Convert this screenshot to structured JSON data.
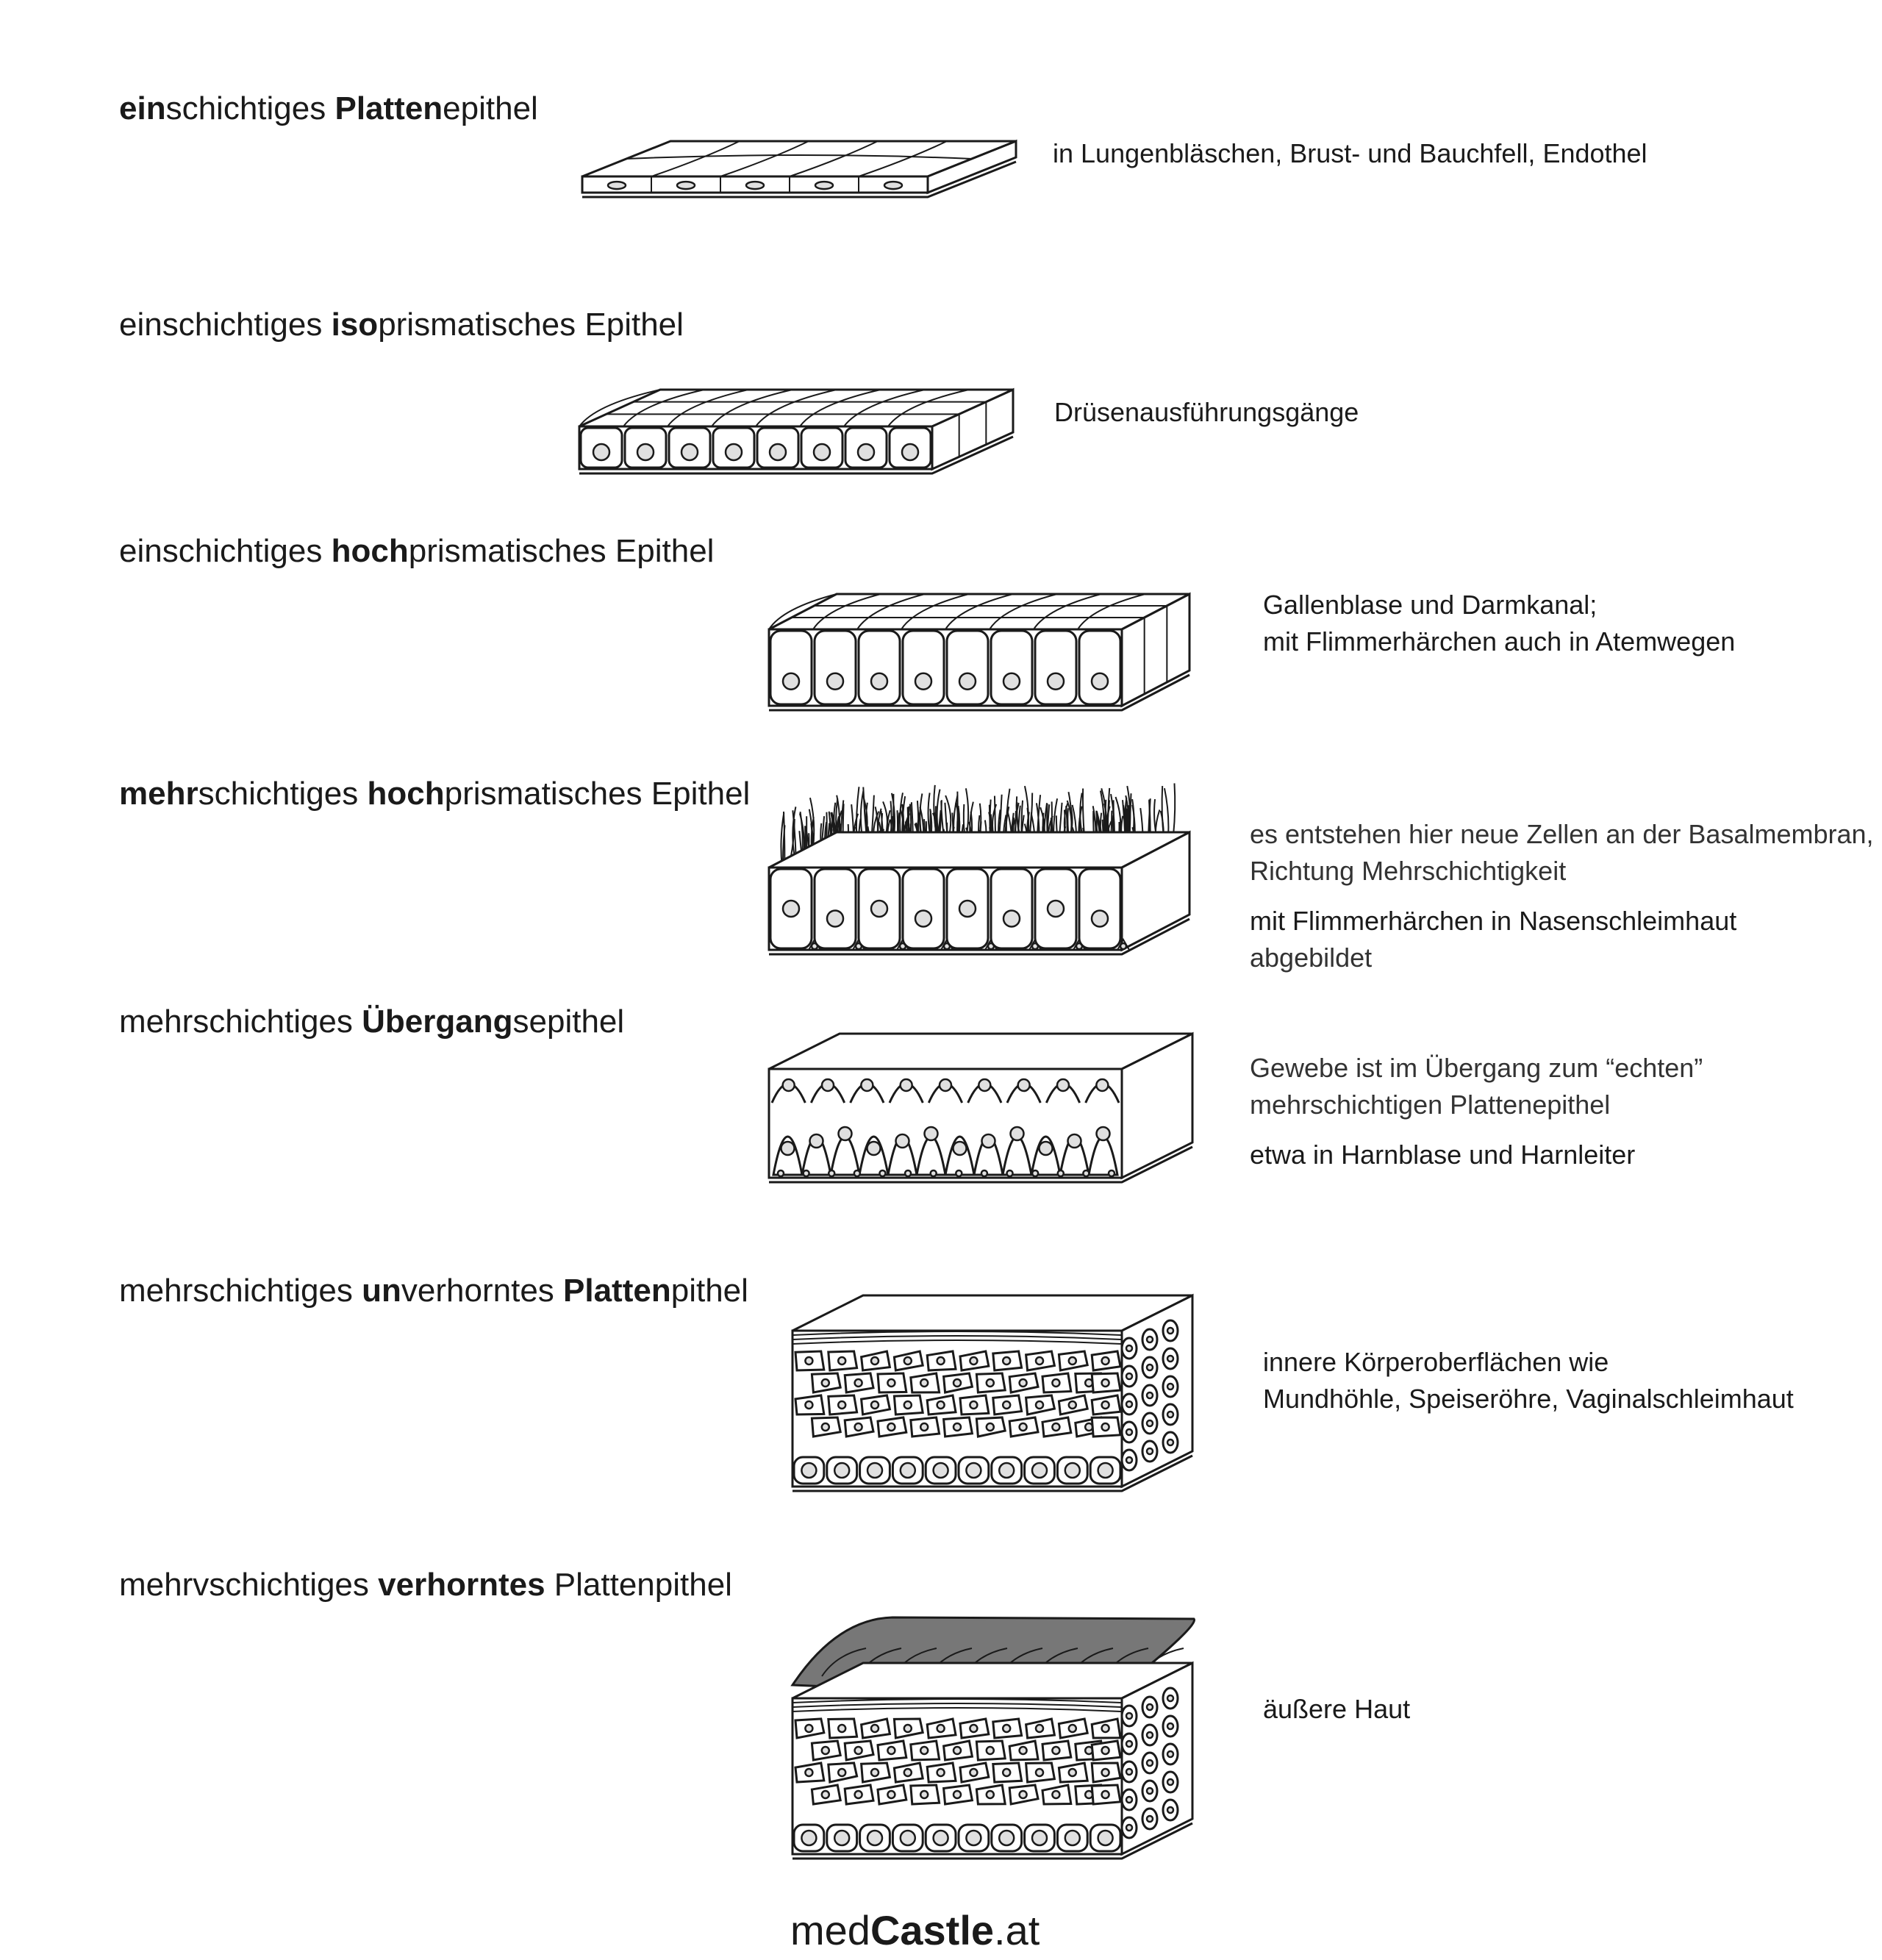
{
  "footer": {
    "brand_light": "med",
    "brand_bold": "Castle",
    "brand_suffix": ".at"
  },
  "sections": [
    {
      "title_parts": [
        {
          "t": "ein",
          "b": true
        },
        {
          "t": "schichtiges ",
          "b": false
        },
        {
          "t": "Platten",
          "b": true
        },
        {
          "t": "epithel",
          "b": false
        }
      ],
      "lines": [
        {
          "t": "in Lungenbläschen, Brust- und Bauchfell, Endothel",
          "w": "regular"
        }
      ]
    },
    {
      "title_parts": [
        {
          "t": "einschichtiges ",
          "b": false
        },
        {
          "t": "iso",
          "b": true
        },
        {
          "t": "prismatisches Epithel",
          "b": false
        }
      ],
      "lines": [
        {
          "t": "Drüsenausführungsgänge",
          "w": "regular"
        }
      ]
    },
    {
      "title_parts": [
        {
          "t": "einschichtiges ",
          "b": false
        },
        {
          "t": "hoch",
          "b": true
        },
        {
          "t": "prismatisches Epithel",
          "b": false
        }
      ],
      "lines": [
        {
          "t": "Gallenblase und Darmkanal;",
          "w": "regular"
        },
        {
          "t": "mit Flimmerhärchen auch in Atemwegen",
          "w": "regular"
        }
      ]
    },
    {
      "title_parts": [
        {
          "t": "mehr",
          "b": true
        },
        {
          "t": "schichtiges ",
          "b": false
        },
        {
          "t": "hoch",
          "b": true
        },
        {
          "t": "prismatisches Epithel",
          "b": false
        }
      ],
      "lines": [
        {
          "t": "es entstehen hier neue Zellen an der Basalmembran,",
          "w": "light"
        },
        {
          "t": "Richtung Mehrschichtigkeit",
          "w": "light"
        },
        {
          "t": "mit Flimmerhärchen in Nasenschleimhaut",
          "w": "regular",
          "gap": true
        },
        {
          "t": "abgebildet",
          "w": "light"
        }
      ]
    },
    {
      "title_parts": [
        {
          "t": "mehrschichtiges ",
          "b": false
        },
        {
          "t": "Übergang",
          "b": true
        },
        {
          "t": "sepithel",
          "b": false
        }
      ],
      "lines": [
        {
          "t": "Gewebe ist im Übergang zum “echten”",
          "w": "light"
        },
        {
          "t": "mehrschichtigen Plattenepithel",
          "w": "light"
        },
        {
          "t": "etwa in Harnblase und Harnleiter",
          "w": "regular",
          "gap": true
        }
      ]
    },
    {
      "title_parts": [
        {
          "t": "mehrschichtiges ",
          "b": false
        },
        {
          "t": "un",
          "b": true
        },
        {
          "t": "verhorntes ",
          "b": false
        },
        {
          "t": "Platten",
          "b": true
        },
        {
          "t": "pithel",
          "b": false
        }
      ],
      "lines": [
        {
          "t": "innere Körperoberflächen wie",
          "w": "regular"
        },
        {
          "t": "Mundhöhle, Speiseröhre, Vaginalschleimhaut",
          "w": "regular"
        }
      ]
    },
    {
      "title_parts": [
        {
          "t": "mehrvschichtiges ",
          "b": false
        },
        {
          "t": "verhorntes",
          "b": true
        },
        {
          "t": " Plattenpithel",
          "b": false
        }
      ],
      "lines": [
        {
          "t": "äußere Haut",
          "w": "regular"
        }
      ]
    }
  ],
  "colors": {
    "line": "#1a1a1a",
    "keratin": "#777777",
    "nucleus": "#e0e0e0",
    "background": "#ffffff"
  }
}
